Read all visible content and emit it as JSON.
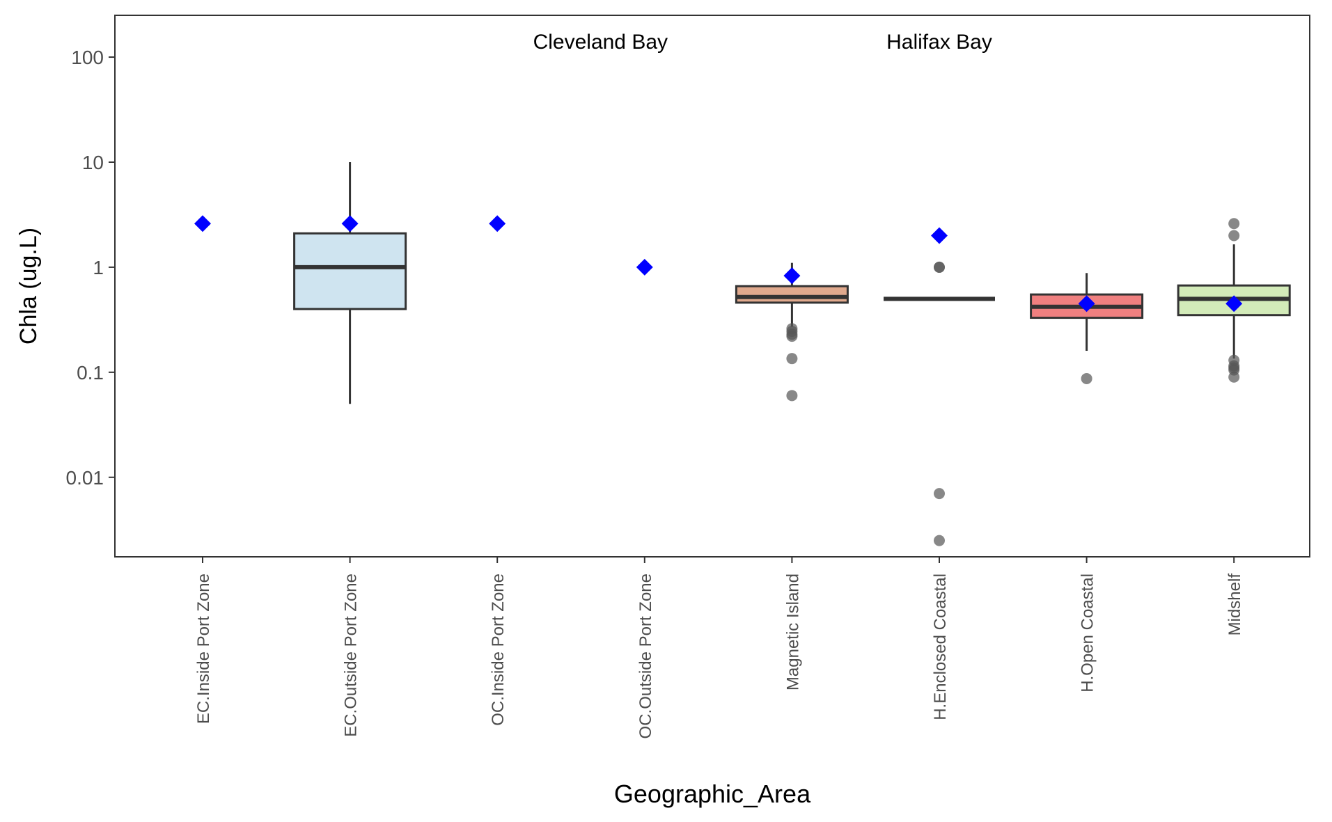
{
  "chart_data": {
    "type": "box",
    "xlabel": "Geographic_Area",
    "ylabel": "Chla (ug.L)",
    "y_scale": "log10",
    "ylim": [
      0.00175,
      250
    ],
    "y_ticks": [
      {
        "value": 100,
        "label": "100"
      },
      {
        "value": 10,
        "label": "10"
      },
      {
        "value": 1,
        "label": "1"
      },
      {
        "value": 0.1,
        "label": "0.1"
      },
      {
        "value": 0.01,
        "label": "0.01"
      }
    ],
    "grid": false,
    "annotations": [
      {
        "text": "Cleveland Bay",
        "x_category": 2.7,
        "y": 130
      },
      {
        "text": "Halifax Bay",
        "x_category": 5.0,
        "y": 130
      }
    ],
    "categories": [
      "EC.Inside Port Zone",
      "EC.Outside Port Zone",
      "OC.Inside Port Zone",
      "OC.Outside Port Zone",
      "Magnetic Island",
      "H.Enclosed Coastal",
      "H.Open Coastal",
      "Midshelf"
    ],
    "boxes": [
      {
        "category": "EC.Inside Port Zone",
        "q1": null,
        "median": null,
        "q3": null,
        "whisker_low": null,
        "whisker_high": null,
        "mean": 2.6,
        "fill": null,
        "outliers": []
      },
      {
        "category": "EC.Outside Port Zone",
        "q1": 0.4,
        "median": 1.0,
        "q3": 2.1,
        "whisker_low": 0.05,
        "whisker_high": 10,
        "mean": 2.6,
        "fill": "#cfe4f0",
        "outliers": []
      },
      {
        "category": "OC.Inside Port Zone",
        "q1": null,
        "median": null,
        "q3": null,
        "whisker_low": null,
        "whisker_high": null,
        "mean": 2.6,
        "fill": null,
        "outliers": []
      },
      {
        "category": "OC.Outside Port Zone",
        "q1": null,
        "median": null,
        "q3": null,
        "whisker_low": null,
        "whisker_high": null,
        "mean": 1.0,
        "fill": null,
        "outliers": []
      },
      {
        "category": "Magnetic Island",
        "q1": 0.46,
        "median": 0.52,
        "q3": 0.66,
        "whisker_low": 0.27,
        "whisker_high": 1.1,
        "mean": 0.83,
        "fill": "#e0a98d",
        "outliers": [
          0.26,
          0.245,
          0.23,
          0.22,
          0.135,
          0.06
        ]
      },
      {
        "category": "H.Enclosed Coastal",
        "q1": 0.5,
        "median": 0.5,
        "q3": 0.5,
        "whisker_low": 0.5,
        "whisker_high": 0.5,
        "mean": 2.0,
        "fill": "#e8e8e8",
        "outliers": [
          1.0,
          1.0,
          0.007,
          0.0025
        ]
      },
      {
        "category": "H.Open Coastal",
        "q1": 0.33,
        "median": 0.42,
        "q3": 0.55,
        "whisker_low": 0.16,
        "whisker_high": 0.88,
        "mean": 0.45,
        "fill": "#f08080",
        "outliers": [
          0.087
        ]
      },
      {
        "category": "Midshelf",
        "q1": 0.35,
        "median": 0.5,
        "q3": 0.67,
        "whisker_low": 0.135,
        "whisker_high": 1.65,
        "mean": 0.45,
        "fill": "#d3ebb9",
        "outliers": [
          2.6,
          2.0,
          0.13,
          0.115,
          0.11,
          0.105,
          0.09
        ]
      }
    ],
    "mean_marker": {
      "shape": "diamond",
      "color": "#0000ff"
    },
    "outlier_color": "#555555",
    "box_stroke": "#333333"
  }
}
